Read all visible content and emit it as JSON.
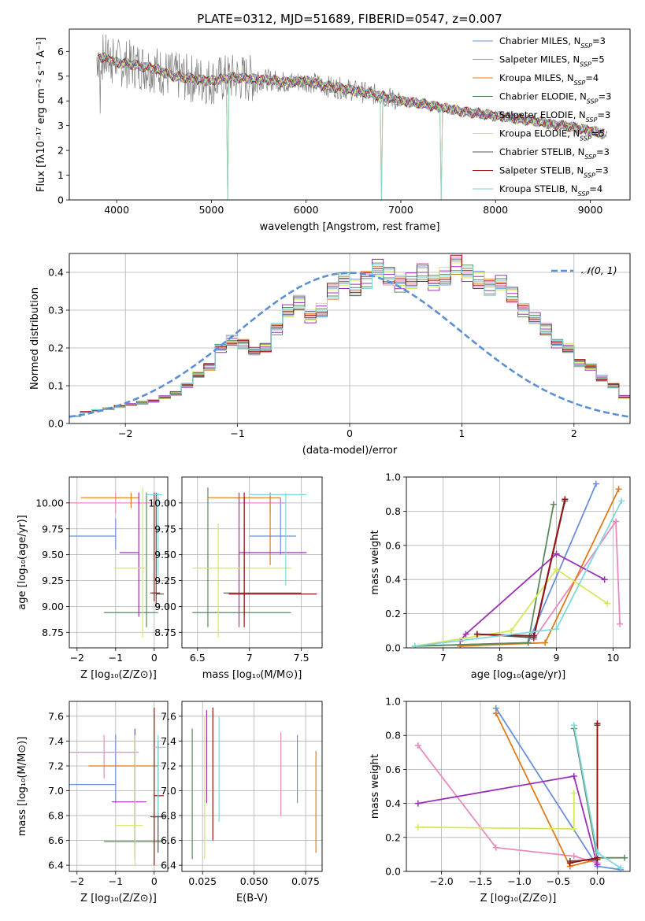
{
  "page_title": "PLATE=0312, MJD=51689, FIBERID=0547, z=0.007",
  "colors": {
    "Chabrier MILES": "#6a8fdc",
    "Salpeter MILES": "#e88abf",
    "Kroupa MILES": "#e07b1a",
    "Chabrier ELODIE": "#5a8a5a",
    "Salpeter ELODIE": "#9b30b8",
    "Kroupa ELODIE": "#d6e85a",
    "Chabrier STELIB": "#555555",
    "Salpeter STELIB": "#9b1010",
    "Kroupa STELIB": "#7fd8e0",
    "data": "#808080",
    "normal": "#5b8fd6"
  },
  "chart_data": [
    {
      "id": "spectrum",
      "type": "line",
      "title": "PLATE=0312, MJD=51689, FIBERID=0547, z=0.007",
      "xlabel": "wavelength [Angstrom, rest frame]",
      "ylabel": "Flux [fλ10⁻¹⁷ erg cm⁻² s⁻¹ A⁻¹]",
      "xlim": [
        3500,
        9420
      ],
      "ylim": [
        0,
        6.9
      ],
      "xticks": [
        4000,
        5000,
        6000,
        7000,
        8000,
        9000
      ],
      "yticks": [
        0,
        1,
        2,
        3,
        4,
        5,
        6
      ],
      "legend_position": "top-right",
      "legend": [
        "Chabrier MILES, N_SSP=3",
        "Salpeter MILES, N_SSP=5",
        "Kroupa MILES, N_SSP=4",
        "Chabrier ELODIE, N_SSP=3",
        "Salpeter ELODIE, N_SSP=3",
        "Kroupa ELODIE, N_SSP=5",
        "Chabrier STELIB, N_SSP=3",
        "Salpeter STELIB, N_SSP=3",
        "Kroupa STELIB, N_SSP=4"
      ],
      "continuum": {
        "x": [
          3800,
          3900,
          4000,
          4200,
          4400,
          4600,
          4800,
          5000,
          5200,
          5400,
          5600,
          5800,
          6000,
          6200,
          6400,
          6600,
          6800,
          7000,
          7200,
          7400,
          7600,
          7800,
          8000,
          8200,
          8400,
          8600,
          8800,
          9000,
          9200
        ],
        "y": [
          5.8,
          5.7,
          5.55,
          5.45,
          5.3,
          5.0,
          4.9,
          4.8,
          4.95,
          4.9,
          4.85,
          4.75,
          4.8,
          4.6,
          4.5,
          4.35,
          4.2,
          4.0,
          3.9,
          3.75,
          3.6,
          3.5,
          3.4,
          3.3,
          3.2,
          3.05,
          2.95,
          2.8,
          2.6
        ]
      },
      "model_drops": [
        5170,
        6800,
        7430
      ],
      "data_noise_range": [
        3800,
        5500
      ]
    },
    {
      "id": "residuals",
      "type": "bar",
      "xlabel": "(data-model)/error",
      "ylabel": "Normed distribution",
      "xlim": [
        -2.5,
        2.5
      ],
      "ylim": [
        0,
        0.45
      ],
      "xticks": [
        -2,
        -1,
        0,
        1,
        2
      ],
      "yticks": [
        0.0,
        0.1,
        0.2,
        0.3,
        0.4
      ],
      "legend": [
        "𝒩(0, 1)"
      ],
      "legend_position": "top-right",
      "bin_width": 0.1,
      "bins_from": -2.5,
      "histogram": [
        0.02,
        0.03,
        0.035,
        0.04,
        0.045,
        0.05,
        0.055,
        0.06,
        0.07,
        0.08,
        0.1,
        0.13,
        0.15,
        0.2,
        0.22,
        0.21,
        0.19,
        0.2,
        0.25,
        0.3,
        0.32,
        0.28,
        0.3,
        0.35,
        0.38,
        0.36,
        0.38,
        0.41,
        0.39,
        0.37,
        0.38,
        0.4,
        0.37,
        0.39,
        0.42,
        0.4,
        0.38,
        0.36,
        0.37,
        0.34,
        0.3,
        0.28,
        0.25,
        0.21,
        0.2,
        0.16,
        0.15,
        0.12,
        0.1,
        0.07,
        0.05,
        0.05,
        0.04,
        0.035
      ]
    },
    {
      "id": "age-vs-Z",
      "type": "scatter",
      "xlabel": "Z [log₁₀(Z/Z⊙)]",
      "ylabel": "age  [log₁₀(age/yr)]",
      "xlim": [
        -2.2,
        0.35
      ],
      "ylim": [
        8.6,
        10.25
      ],
      "xticks": [
        -2,
        -1,
        0
      ],
      "yticks": [
        8.75,
        9.0,
        9.25,
        9.5,
        9.75,
        10.0
      ],
      "points": [
        {
          "model": "Chabrier MILES",
          "x": -1.0,
          "y": 9.68,
          "xerr": [
            2.0,
            0.0
          ],
          "yerr": [
            9.55,
            9.85
          ]
        },
        {
          "model": "Salpeter MILES",
          "x": -1.0,
          "y": 10.0,
          "xerr": [
            1.75,
            1.0
          ],
          "yerr": [
            9.9,
            10.1
          ]
        },
        {
          "model": "Kroupa MILES",
          "x": -0.6,
          "y": 10.05,
          "xerr": [
            1.3,
            0.2
          ],
          "yerr": [
            9.95,
            10.1
          ]
        },
        {
          "model": "Chabrier ELODIE",
          "x": -0.2,
          "y": 8.94,
          "xerr": [
            1.1,
            0.3
          ],
          "yerr": [
            8.8,
            10.1
          ]
        },
        {
          "model": "Salpeter ELODIE",
          "x": -0.4,
          "y": 9.52,
          "xerr": [
            0.5,
            0.0
          ],
          "yerr": [
            8.9,
            10.1
          ]
        },
        {
          "model": "Kroupa ELODIE",
          "x": -0.3,
          "y": 9.37,
          "xerr": [
            0.75,
            0.1
          ],
          "yerr": [
            8.7,
            10.15
          ]
        },
        {
          "model": "Chabrier STELIB",
          "x": 0.05,
          "y": 9.12,
          "xerr": [
            0.0,
            0.2
          ],
          "yerr": [
            9.0,
            10.1
          ]
        },
        {
          "model": "Salpeter STELIB",
          "x": 0.0,
          "y": 9.13,
          "xerr": [
            0.1,
            0.15
          ],
          "yerr": [
            9.05,
            10.1
          ]
        },
        {
          "model": "Kroupa STELIB",
          "x": 0.1,
          "y": 10.08,
          "xerr": [
            0.3,
            0.1
          ],
          "yerr": [
            9.3,
            10.1
          ]
        }
      ]
    },
    {
      "id": "age-vs-mass",
      "type": "scatter",
      "xlabel": "mass [log₁₀(M/M⊙)]",
      "ylabel": "",
      "xlim": [
        6.35,
        7.7
      ],
      "ylim": [
        8.6,
        10.25
      ],
      "xticks": [
        6.5,
        7.0,
        7.5
      ],
      "yticks": [
        8.75,
        9.0,
        9.25,
        9.5,
        9.75,
        10.0
      ],
      "points": [
        {
          "model": "Chabrier MILES",
          "x": 7.3,
          "y": 9.68,
          "xerr": [
            7.0,
            7.45
          ],
          "yerr": [
            9.5,
            10.05
          ]
        },
        {
          "model": "Salpeter MILES",
          "x": 7.2,
          "y": 10.0,
          "xerr": [
            6.9,
            7.35
          ],
          "yerr": [
            9.9,
            10.1
          ]
        },
        {
          "model": "Kroupa MILES",
          "x": 7.2,
          "y": 10.05,
          "xerr": [
            6.6,
            7.3
          ],
          "yerr": [
            9.4,
            10.1
          ]
        },
        {
          "model": "Chabrier ELODIE",
          "x": 6.6,
          "y": 8.94,
          "xerr": [
            6.45,
            7.4
          ],
          "yerr": [
            8.8,
            10.15
          ]
        },
        {
          "model": "Salpeter ELODIE",
          "x": 6.9,
          "y": 9.52,
          "xerr": [
            6.9,
            7.55
          ],
          "yerr": [
            8.8,
            10.1
          ]
        },
        {
          "model": "Kroupa ELODIE",
          "x": 6.7,
          "y": 9.37,
          "xerr": [
            6.45,
            7.4
          ],
          "yerr": [
            8.7,
            9.8
          ]
        },
        {
          "model": "Chabrier STELIB",
          "x": 6.95,
          "y": 9.13,
          "xerr": [
            6.75,
            7.5
          ],
          "yerr": [
            8.9,
            10.05
          ]
        },
        {
          "model": "Salpeter STELIB",
          "x": 6.95,
          "y": 9.12,
          "xerr": [
            6.8,
            7.65
          ],
          "yerr": [
            8.8,
            10.1
          ]
        },
        {
          "model": "Kroupa STELIB",
          "x": 7.35,
          "y": 10.08,
          "xerr": [
            7.0,
            7.55
          ],
          "yerr": [
            9.2,
            10.1
          ]
        }
      ]
    },
    {
      "id": "weight-vs-age",
      "type": "line",
      "xlabel": "age  [log₁₀(age/yr)]",
      "ylabel": "mass weight",
      "xlim": [
        6.35,
        10.3
      ],
      "ylim": [
        0,
        1.0
      ],
      "xticks": [
        7,
        8,
        9,
        10
      ],
      "yticks": [
        0.0,
        0.2,
        0.4,
        0.6,
        0.8,
        1.0
      ],
      "series": [
        {
          "model": "Chabrier MILES",
          "x": [
            6.5,
            8.5,
            9.7
          ],
          "y": [
            0.01,
            0.03,
            0.96
          ]
        },
        {
          "model": "Salpeter MILES",
          "x": [
            8.6,
            10.05,
            10.12
          ],
          "y": [
            0.05,
            0.74,
            0.14
          ]
        },
        {
          "model": "Kroupa MILES",
          "x": [
            7.3,
            8.8,
            10.1
          ],
          "y": [
            0.01,
            0.03,
            0.93
          ]
        },
        {
          "model": "Chabrier ELODIE",
          "x": [
            6.5,
            8.5,
            8.95
          ],
          "y": [
            0.01,
            0.03,
            0.84
          ]
        },
        {
          "model": "Salpeter ELODIE",
          "x": [
            7.3,
            7.4,
            9.0,
            9.85
          ],
          "y": [
            0.04,
            0.08,
            0.55,
            0.4
          ]
        },
        {
          "model": "Kroupa ELODIE",
          "x": [
            6.5,
            8.2,
            9.0,
            9.9
          ],
          "y": [
            0.01,
            0.1,
            0.46,
            0.26
          ]
        },
        {
          "model": "Chabrier STELIB",
          "x": [
            7.6,
            8.6,
            9.15
          ],
          "y": [
            0.08,
            0.06,
            0.86
          ]
        },
        {
          "model": "Salpeter STELIB",
          "x": [
            7.6,
            8.6,
            9.15
          ],
          "y": [
            0.08,
            0.07,
            0.87
          ]
        },
        {
          "model": "Kroupa STELIB",
          "x": [
            6.5,
            9.0,
            10.15
          ],
          "y": [
            0.01,
            0.11,
            0.86
          ]
        }
      ]
    },
    {
      "id": "mass-vs-Z",
      "type": "scatter",
      "xlabel": "Z [log₁₀(Z/Z⊙)]",
      "ylabel": "mass [log₁₀(M/M⊙)]",
      "xlim": [
        -2.2,
        0.35
      ],
      "ylim": [
        6.35,
        7.72
      ],
      "xticks": [
        -2,
        -1,
        0
      ],
      "yticks": [
        6.4,
        6.6,
        6.8,
        7.0,
        7.2,
        7.4,
        7.6
      ],
      "points": [
        {
          "model": "Chabrier MILES",
          "x": -1.0,
          "y": 7.05,
          "xerr": [
            2.0,
            0.0
          ],
          "yerr": [
            6.9,
            7.45
          ]
        },
        {
          "model": "Salpeter MILES",
          "x": -1.3,
          "y": 7.31,
          "xerr": [
            1.0,
            0.9
          ],
          "yerr": [
            7.1,
            7.45
          ]
        },
        {
          "model": "Kroupa MILES",
          "x": -0.5,
          "y": 7.2,
          "xerr": [
            1.2,
            0.6
          ],
          "yerr": [
            6.9,
            7.45
          ]
        },
        {
          "model": "Chabrier ELODIE",
          "x": -0.5,
          "y": 6.59,
          "xerr": [
            0.8,
            0.7
          ],
          "yerr": [
            6.45,
            7.45
          ]
        },
        {
          "model": "Salpeter ELODIE",
          "x": -0.5,
          "y": 6.91,
          "xerr": [
            0.6,
            0.3
          ],
          "yerr": [
            6.55,
            7.5
          ]
        },
        {
          "model": "Kroupa ELODIE",
          "x": -0.5,
          "y": 6.72,
          "xerr": [
            0.5,
            0.2
          ],
          "yerr": [
            6.4,
            7.45
          ]
        },
        {
          "model": "Chabrier STELIB",
          "x": 0.1,
          "y": 6.79,
          "xerr": [
            0.2,
            0.2
          ],
          "yerr": [
            6.5,
            7.4
          ]
        },
        {
          "model": "Salpeter STELIB",
          "x": 0.0,
          "y": 6.96,
          "xerr": [
            0.0,
            0.25
          ],
          "yerr": [
            6.4,
            7.67
          ]
        },
        {
          "model": "Kroupa STELIB",
          "x": 0.1,
          "y": 7.35,
          "xerr": [
            0.1,
            0.2
          ],
          "yerr": [
            6.8,
            7.45
          ]
        }
      ]
    },
    {
      "id": "mass-vs-ebv",
      "type": "scatter",
      "xlabel": "E(B-V)",
      "ylabel": "",
      "xlim": [
        0.015,
        0.083
      ],
      "ylim": [
        6.35,
        7.72
      ],
      "xticks": [
        0.025,
        0.05,
        0.075
      ],
      "xticklabels": [
        "0.025",
        "0.050",
        "0.075"
      ],
      "yticks": [
        6.4,
        6.6,
        6.8,
        7.0,
        7.2,
        7.4,
        7.6
      ],
      "points": [
        {
          "model": "Chabrier ELODIE",
          "x": 0.02,
          "yerr": [
            6.45,
            7.5
          ]
        },
        {
          "model": "Kroupa ELODIE",
          "x": 0.026,
          "yerr": [
            6.45,
            7.6
          ]
        },
        {
          "model": "Salpeter ELODIE",
          "x": 0.027,
          "yerr": [
            6.9,
            7.65
          ]
        },
        {
          "model": "Salpeter STELIB",
          "x": 0.03,
          "yerr": [
            6.6,
            7.67
          ]
        },
        {
          "model": "Kroupa STELIB",
          "x": 0.033,
          "yerr": [
            6.75,
            7.6
          ]
        },
        {
          "model": "Salpeter MILES",
          "x": 0.063,
          "yerr": [
            6.8,
            7.47
          ]
        },
        {
          "model": "Chabrier MILES",
          "x": 0.071,
          "yerr": [
            6.9,
            7.45
          ]
        },
        {
          "model": "Kroupa MILES",
          "x": 0.08,
          "yerr": [
            6.5,
            7.32
          ]
        }
      ]
    },
    {
      "id": "weight-vs-Z",
      "type": "line",
      "xlabel": "Z [log₁₀(Z/Z⊙)]",
      "ylabel": "mass weight",
      "xlim": [
        -2.45,
        0.42
      ],
      "ylim": [
        0,
        1.0
      ],
      "xticks": [
        -2.0,
        -1.5,
        -1.0,
        -0.5,
        0.0
      ],
      "xticklabels": [
        "−2.0",
        "−1.5",
        "−1.0",
        "−0.5",
        "0.0"
      ],
      "yticks": [
        0.0,
        0.2,
        0.4,
        0.6,
        0.8,
        1.0
      ],
      "series": [
        {
          "model": "Chabrier MILES",
          "x": [
            -1.3,
            0.0,
            0.3
          ],
          "y": [
            0.96,
            0.03,
            0.01
          ]
        },
        {
          "model": "Salpeter MILES",
          "x": [
            -2.3,
            -1.3,
            -0.3,
            0.0
          ],
          "y": [
            0.74,
            0.14,
            0.09,
            0.05
          ]
        },
        {
          "model": "Kroupa MILES",
          "x": [
            -1.3,
            -0.35,
            0.0
          ],
          "y": [
            0.93,
            0.03,
            0.07
          ]
        },
        {
          "model": "Chabrier ELODIE",
          "x": [
            -0.3,
            0.0,
            0.35
          ],
          "y": [
            0.84,
            0.08,
            0.08
          ]
        },
        {
          "model": "Salpeter ELODIE",
          "x": [
            -2.3,
            -0.3,
            0.0
          ],
          "y": [
            0.4,
            0.56,
            0.04
          ]
        },
        {
          "model": "Kroupa ELODIE",
          "x": [
            -2.3,
            -0.3,
            -0.3
          ],
          "y": [
            0.26,
            0.25,
            0.46
          ]
        },
        {
          "model": "Chabrier STELIB",
          "x": [
            -0.35,
            0.0,
            0.0
          ],
          "y": [
            0.06,
            0.07,
            0.86
          ]
        },
        {
          "model": "Salpeter STELIB",
          "x": [
            -0.35,
            0.0,
            0.0
          ],
          "y": [
            0.05,
            0.08,
            0.87
          ]
        },
        {
          "model": "Kroupa STELIB",
          "x": [
            -0.3,
            0.0,
            0.3
          ],
          "y": [
            0.86,
            0.11,
            0.02
          ]
        }
      ]
    }
  ]
}
